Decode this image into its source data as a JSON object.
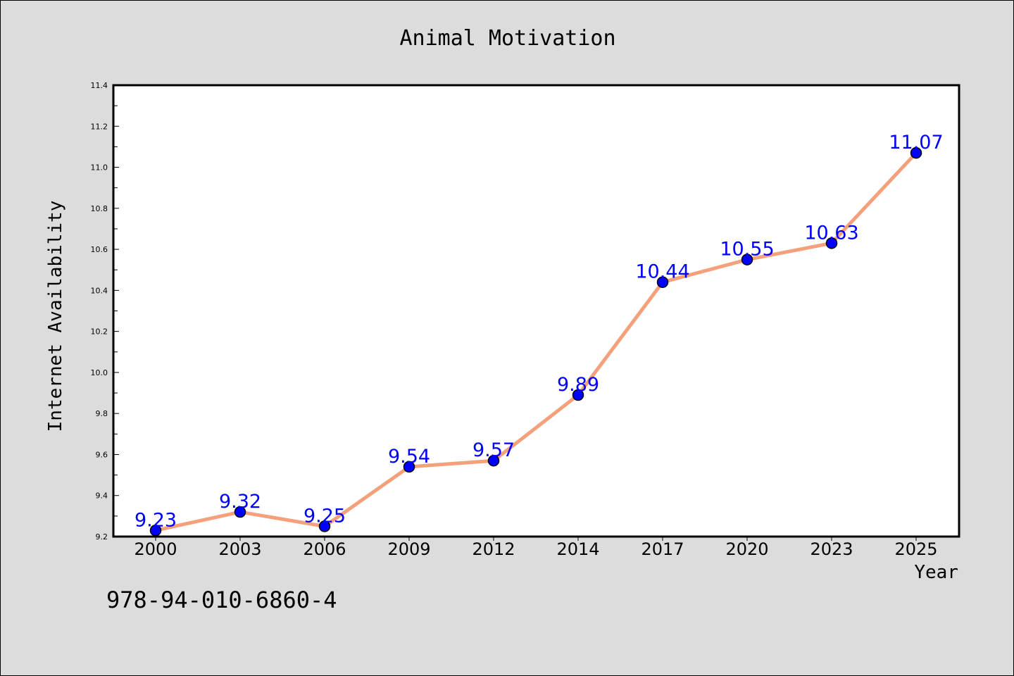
{
  "chart_data": {
    "type": "line",
    "title": "Animal Motivation",
    "xlabel": "Year",
    "ylabel": "Internet Availability",
    "categories": [
      "2000",
      "2003",
      "2006",
      "2009",
      "2012",
      "2014",
      "2017",
      "2020",
      "2023",
      "2025"
    ],
    "series": [
      {
        "values": [
          9.23,
          9.32,
          9.25,
          9.54,
          9.57,
          9.89,
          10.44,
          10.55,
          10.63,
          11.07
        ],
        "data_labels": [
          "9.23",
          "9.32",
          "9.25",
          "9.54",
          "9.57",
          "9.89",
          "10.44",
          "10.55",
          "10.63",
          "11.07"
        ],
        "line_color": "#f4a07a",
        "marker_color": "#0000ff",
        "label_color": "#0000ff"
      }
    ],
    "ylim": [
      9.2,
      11.4
    ],
    "yticks": [
      "9.2",
      "9.4",
      "9.6",
      "9.8",
      "10.0",
      "10.2",
      "10.4",
      "10.6",
      "10.8",
      "11.0",
      "11.2",
      "11.4"
    ],
    "grid": false,
    "legend": "none",
    "background_color": "#dcdcdc",
    "plot_background_color": "#ffffff"
  },
  "footer": {
    "code": "978-94-010-6860-4"
  }
}
